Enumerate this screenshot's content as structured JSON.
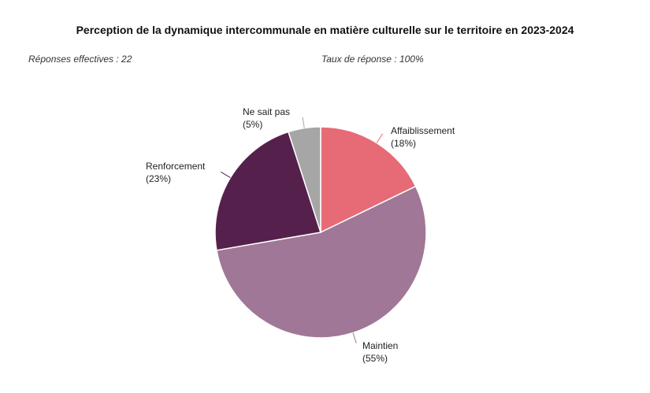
{
  "header": {
    "title": "Perception de la dynamique intercommunale en matière culturelle sur le territoire en 2023-2024",
    "responses": "Réponses effectives : 22",
    "response_rate": "Taux de réponse : 100%"
  },
  "chart_data": {
    "type": "pie",
    "title": "Perception de la dynamique intercommunale en matière culturelle sur le territoire en 2023-2024",
    "start": "12 o'clock, clockwise",
    "slices": [
      {
        "label": "Affaiblissement",
        "percent_label": "(18%)",
        "value": 18,
        "color": "#e66b76"
      },
      {
        "label": "Maintien",
        "percent_label": "(55%)",
        "value": 55,
        "color": "#a07796"
      },
      {
        "label": "Renforcement",
        "percent_label": "(23%)",
        "value": 23,
        "color": "#56204c"
      },
      {
        "label": "Ne sait pas",
        "percent_label": "(5%)",
        "value": 5,
        "color": "#a6a6a6"
      }
    ]
  }
}
